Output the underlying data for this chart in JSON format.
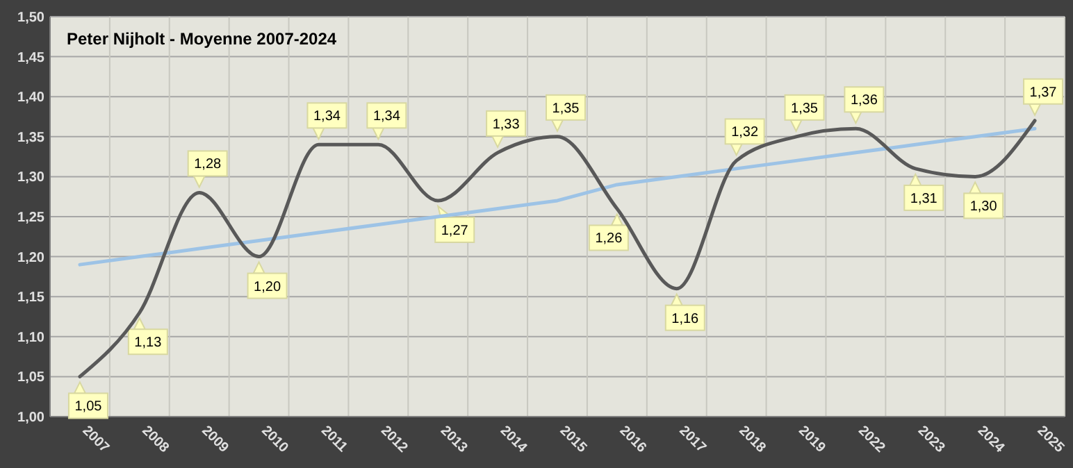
{
  "chart_data": {
    "type": "line",
    "title": "Peter Nijholt - Moyenne 2007-2024",
    "categories": [
      "2007",
      "2008",
      "2009",
      "2010",
      "2011",
      "2012",
      "2013",
      "2014",
      "2015",
      "2016",
      "2017",
      "2018",
      "2019",
      "2022",
      "2023",
      "2024",
      "2025"
    ],
    "series": [
      {
        "color": "#595959",
        "values": [
          1.05,
          1.13,
          1.28,
          1.2,
          1.34,
          1.34,
          1.27,
          1.33,
          1.35,
          1.26,
          1.16,
          1.32,
          1.35,
          1.36,
          1.31,
          1.3,
          1.37
        ],
        "value_labels": [
          "1,05",
          "1,13",
          "1,28",
          "1,20",
          "1,34",
          "1,34",
          "1,27",
          "1,33",
          "1,35",
          "1,26",
          "1,16",
          "1,32",
          "1,35",
          "1,36",
          "1,31",
          "1,30",
          "1,37"
        ]
      },
      {
        "type": "line",
        "color": "#9dc3e6",
        "values": [
          1.19,
          1.2,
          1.21,
          1.22,
          1.23,
          1.24,
          1.25,
          1.26,
          1.27,
          1.29,
          1.3,
          1.31,
          1.32,
          1.33,
          1.34,
          1.35,
          1.36
        ]
      }
    ],
    "ylim": [
      1.0,
      1.5
    ],
    "yticks": [
      {
        "value": 1.0,
        "label": "1,00"
      },
      {
        "value": 1.05,
        "label": "1,05"
      },
      {
        "value": 1.1,
        "label": "1,10"
      },
      {
        "value": 1.15,
        "label": "1,15"
      },
      {
        "value": 1.2,
        "label": "1,20"
      },
      {
        "value": 1.25,
        "label": "1,25"
      },
      {
        "value": 1.3,
        "label": "1,30"
      },
      {
        "value": 1.35,
        "label": "1,35"
      },
      {
        "value": 1.4,
        "label": "1,40"
      },
      {
        "value": 1.45,
        "label": "1,45"
      },
      {
        "value": 1.5,
        "label": "1,50"
      }
    ],
    "grid": true,
    "marker": "none",
    "line_style": "solid"
  }
}
